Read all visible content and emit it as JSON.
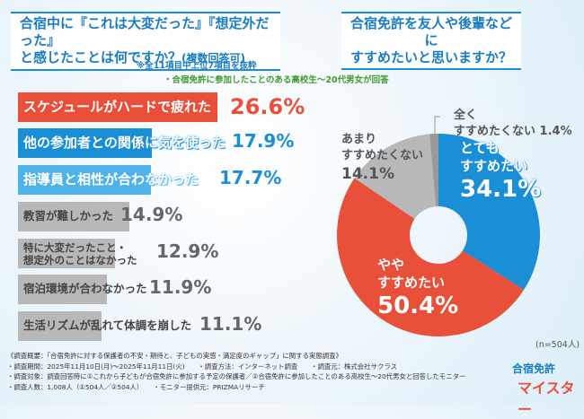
{
  "left_title": {
    "line1": "合宿中に『これは大変だった』『想定外だった』",
    "line2": "と感じたことは何ですか？",
    "suffix": "(複数回答可)"
  },
  "note1": "※全11項目中上位7項目を抜粋",
  "note2": "・合宿免許に参加したことのある高校生～20代男女が回答",
  "right_title": {
    "line1": "合宿免許を友人や後輩などに",
    "line2": "すすめたいと思いますか？"
  },
  "n_label": "(n=504人)",
  "colors": {
    "red": "#e8503a",
    "blue": "#1a8fd6",
    "light_blue": "#4fb3ea",
    "gray": "#b8b8b8",
    "dark_gray": "#999999"
  },
  "chart_data": [
    {
      "type": "bar",
      "orientation": "horizontal",
      "unit": "%",
      "categories": [
        "スケジュールがハードで疲れた",
        "他の参加者との関係に気を使った",
        "指導員と相性が合わなかった",
        "教習が難しかった",
        "特に大変だったこと・想定外のことはなかった",
        "宿泊環境が合わなかった",
        "生活リズムが乱れて体調を崩した"
      ],
      "values": [
        26.6,
        17.9,
        17.7,
        14.9,
        12.9,
        11.9,
        11.1
      ],
      "labels": [
        "26.6%",
        "17.9%",
        "17.7%",
        "14.9%",
        "12.9%",
        "11.9%",
        "11.1%"
      ],
      "bar_colors": [
        "#e8503a",
        "#1a8fd6",
        "#4fb3ea",
        "#b8b8b8",
        "#b8b8b8",
        "#b8b8b8",
        "#b8b8b8"
      ]
    },
    {
      "type": "pie",
      "donut": true,
      "categories": [
        "とてもすすめたい",
        "ややすすめたい",
        "あまりすすめたくない",
        "全くすすめたくない"
      ],
      "values": [
        34.1,
        50.4,
        14.1,
        1.4
      ],
      "labels": [
        "34.1%",
        "50.4%",
        "14.1%",
        "1.4%"
      ],
      "slice_colors": [
        "#1a8fd6",
        "#e8503a",
        "#b8b8b8",
        "#999999"
      ]
    }
  ],
  "pie_text": [
    {
      "l1": "とても",
      "l2": "すすめたい"
    },
    {
      "l1": "やや",
      "l2": "すすめたい"
    },
    {
      "l1": "あまり",
      "l2": "すすめたくない"
    },
    {
      "l1": "全く",
      "l2": "すすめたくない"
    }
  ],
  "footer": [
    "《調査概要：「合宿免許に対する保護者の不安・期待と、子どもの実感・満足度のギャップ」に関する実態調査》",
    "・調査期間：2025年11月10日(月)～2025年11月11日(火)　　・調査方法：インターネット調査　　・調査元：株式会社サクラス",
    "・調査対象：調査回答時に①これから子どもが合宿免許に参加する予定の保護者／②合宿免許に参加したことのある高校生～20代男女と回答したモニター",
    "・調査人数：1,008人（①504人／②504人）　　・モニター提供元：PRIZMAリサーチ"
  ],
  "logo": {
    "line1": "合宿免許",
    "line2": "マイスター"
  }
}
